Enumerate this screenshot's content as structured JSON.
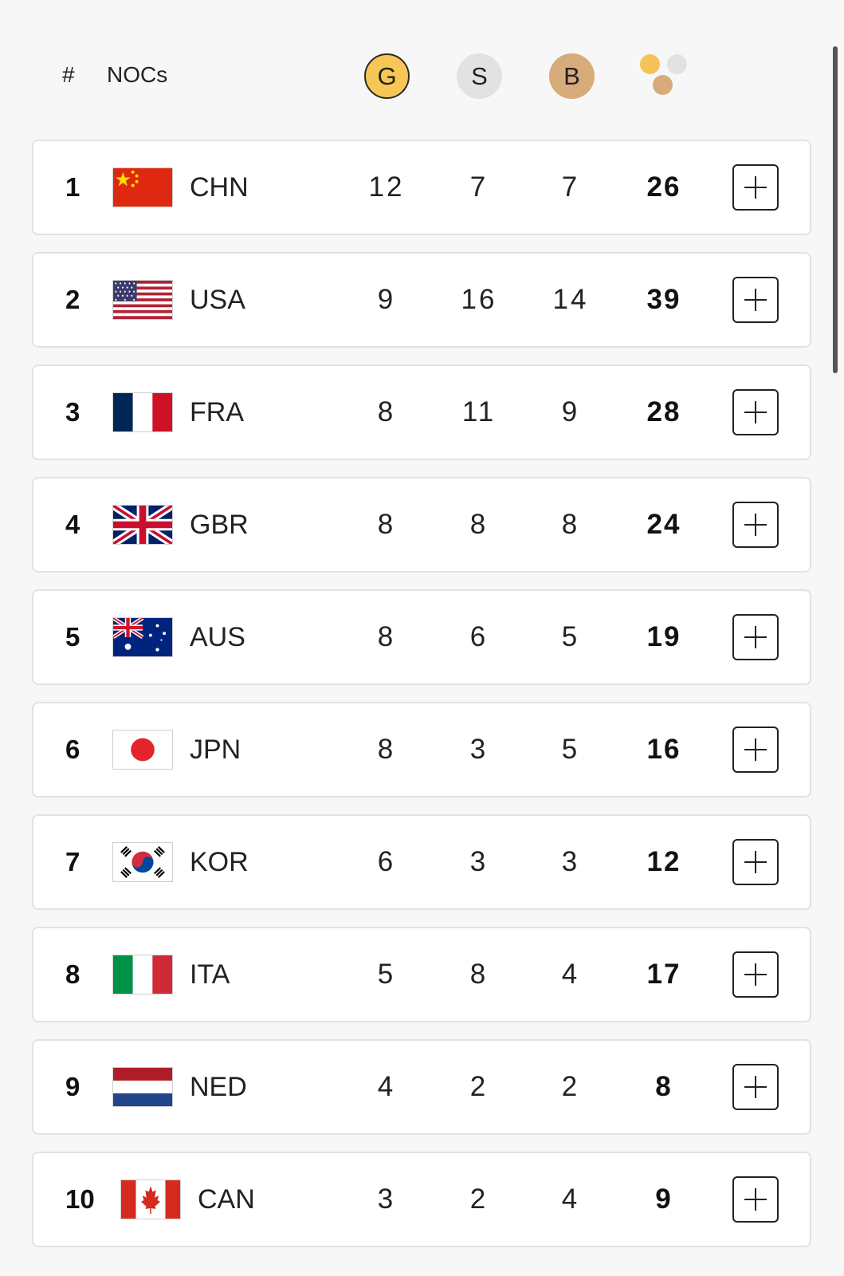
{
  "header": {
    "rank_label": "#",
    "noc_label": "NOCs",
    "gold_label": "G",
    "silver_label": "S",
    "bronze_label": "B"
  },
  "colors": {
    "gold": "#f7c755",
    "silver": "#e2e2e2",
    "bronze": "#d8ab7a"
  },
  "rows": [
    {
      "rank": "1",
      "flag": "flag-china-icon",
      "noc": "CHN",
      "gold": "12",
      "silver": "7",
      "bronze": "7",
      "total": "26"
    },
    {
      "rank": "2",
      "flag": "flag-usa-icon",
      "noc": "USA",
      "gold": "9",
      "silver": "16",
      "bronze": "14",
      "total": "39"
    },
    {
      "rank": "3",
      "flag": "flag-france-icon",
      "noc": "FRA",
      "gold": "8",
      "silver": "11",
      "bronze": "9",
      "total": "28"
    },
    {
      "rank": "4",
      "flag": "flag-great-britain-icon",
      "noc": "GBR",
      "gold": "8",
      "silver": "8",
      "bronze": "8",
      "total": "24"
    },
    {
      "rank": "5",
      "flag": "flag-australia-icon",
      "noc": "AUS",
      "gold": "8",
      "silver": "6",
      "bronze": "5",
      "total": "19"
    },
    {
      "rank": "6",
      "flag": "flag-japan-icon",
      "noc": "JPN",
      "gold": "8",
      "silver": "3",
      "bronze": "5",
      "total": "16"
    },
    {
      "rank": "7",
      "flag": "flag-korea-icon",
      "noc": "KOR",
      "gold": "6",
      "silver": "3",
      "bronze": "3",
      "total": "12"
    },
    {
      "rank": "8",
      "flag": "flag-italy-icon",
      "noc": "ITA",
      "gold": "5",
      "silver": "8",
      "bronze": "4",
      "total": "17"
    },
    {
      "rank": "9",
      "flag": "flag-netherlands-icon",
      "noc": "NED",
      "gold": "4",
      "silver": "2",
      "bronze": "2",
      "total": "8"
    },
    {
      "rank": "10",
      "flag": "flag-canada-icon",
      "noc": "CAN",
      "gold": "3",
      "silver": "2",
      "bronze": "4",
      "total": "9"
    }
  ]
}
